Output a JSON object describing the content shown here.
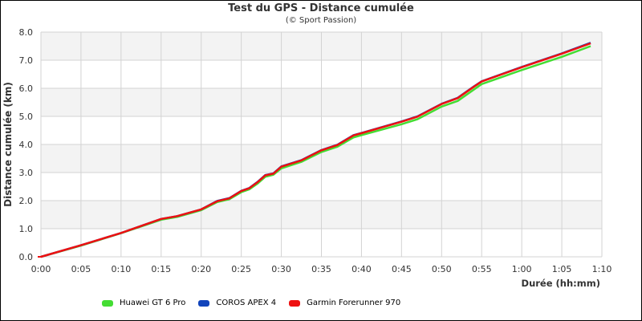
{
  "chart_data": {
    "type": "line",
    "title": "Test du GPS - Distance cumulée",
    "subtitle": "(© Sport Passion)",
    "xlabel": "Durée (hh:mm)",
    "ylabel": "Distance cumulée (km)",
    "xlim_minutes": [
      0,
      70
    ],
    "ylim": [
      0,
      8
    ],
    "grid": true,
    "legend_position": "bottom",
    "x_ticks": [
      "0:00",
      "0:05",
      "0:10",
      "0:15",
      "0:20",
      "0:25",
      "0:30",
      "0:35",
      "0:40",
      "0:45",
      "0:50",
      "0:55",
      "1:00",
      "1:05",
      "1:10"
    ],
    "y_ticks": [
      "0.0",
      "1.0",
      "2.0",
      "3.0",
      "4.0",
      "5.0",
      "6.0",
      "7.0",
      "8.0"
    ],
    "x_minutes": [
      0,
      5,
      10,
      15,
      17,
      20,
      22,
      23.5,
      25,
      26,
      27,
      28,
      29,
      30,
      32.5,
      35,
      37,
      39,
      40,
      45,
      47,
      50,
      52,
      54,
      55,
      60,
      65,
      68.6
    ],
    "series": [
      {
        "name": "Huawei GT 6 Pro",
        "color": "#44dd33",
        "values": [
          0,
          0.4,
          0.84,
          1.32,
          1.42,
          1.66,
          1.95,
          2.05,
          2.3,
          2.4,
          2.6,
          2.85,
          2.92,
          3.15,
          3.38,
          3.73,
          3.92,
          4.25,
          4.33,
          4.72,
          4.9,
          5.35,
          5.55,
          5.95,
          6.15,
          6.65,
          7.12,
          7.5
        ]
      },
      {
        "name": "COROS APEX 4",
        "color": "#1144bb",
        "values": [
          0,
          0.41,
          0.85,
          1.35,
          1.45,
          1.69,
          1.99,
          2.09,
          2.35,
          2.45,
          2.66,
          2.91,
          2.97,
          3.22,
          3.44,
          3.8,
          3.99,
          4.33,
          4.41,
          4.82,
          5.0,
          5.45,
          5.66,
          6.06,
          6.25,
          6.76,
          7.24,
          7.62
        ]
      },
      {
        "name": "Garmin Forerunner 970",
        "color": "#ee1111",
        "values": [
          0,
          0.41,
          0.85,
          1.35,
          1.45,
          1.69,
          1.98,
          2.08,
          2.34,
          2.44,
          2.65,
          2.9,
          2.96,
          3.21,
          3.43,
          3.79,
          3.98,
          4.32,
          4.4,
          4.81,
          4.99,
          5.44,
          5.65,
          6.05,
          6.24,
          6.75,
          7.23,
          7.6
        ]
      }
    ]
  },
  "legend": {
    "items": [
      {
        "label": "Huawei GT 6 Pro",
        "color": "#44dd33"
      },
      {
        "label": "COROS APEX 4",
        "color": "#1144bb"
      },
      {
        "label": "Garmin Forerunner 970",
        "color": "#ee1111"
      }
    ]
  }
}
